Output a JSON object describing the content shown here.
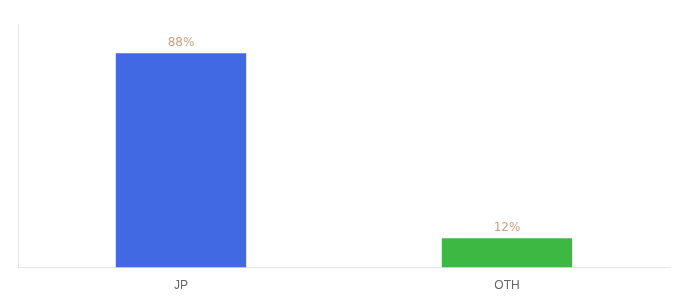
{
  "chart_data": {
    "type": "bar",
    "categories": [
      "JP",
      "OTH"
    ],
    "values": [
      88,
      12
    ],
    "value_labels": [
      "88%",
      "12%"
    ],
    "colors": [
      "#4169e1",
      "#3cb843"
    ],
    "ylim": [
      0,
      100
    ],
    "grid": false,
    "data_labels": true,
    "tick_labels": "x"
  }
}
